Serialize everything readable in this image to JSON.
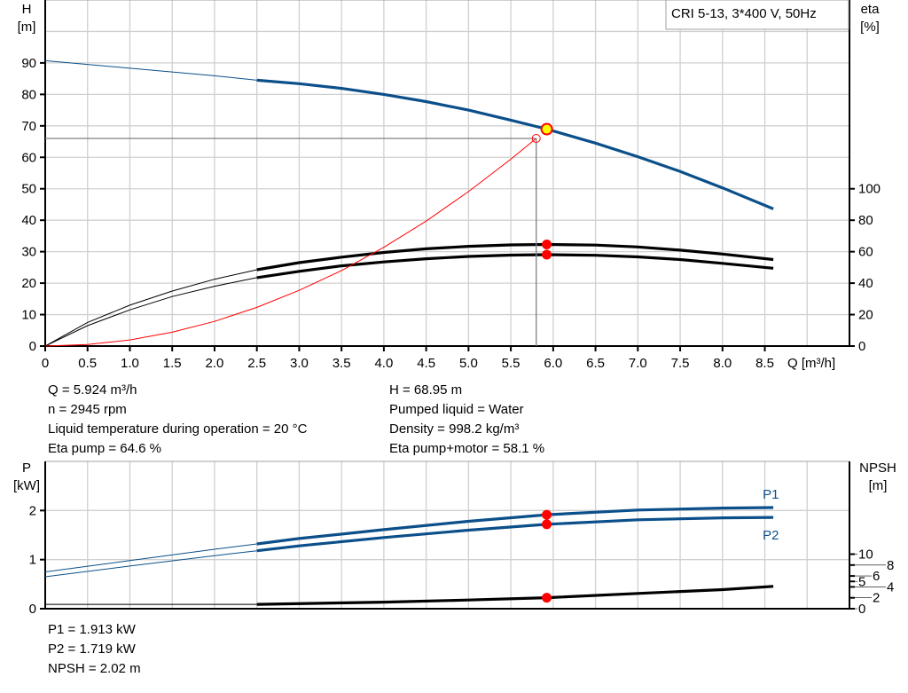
{
  "chart_data": [
    {
      "type": "line",
      "title": "CRI 5-13, 3*400 V, 50Hz",
      "xlabel": "Q [m³/h]",
      "ylabel": "H\n[m]",
      "ylabel_lines": [
        "H",
        "[m]"
      ],
      "y2label_lines": [
        "eta",
        "[%]"
      ],
      "xlim": [
        0,
        9.5
      ],
      "ylim": [
        0,
        110
      ],
      "y2lim": [
        0,
        220
      ],
      "x_ticks": [
        "0",
        "0.5",
        "1.0",
        "1.5",
        "2.0",
        "2.5",
        "3.0",
        "3.5",
        "4.0",
        "4.5",
        "5.0",
        "5.5",
        "6.0",
        "6.5",
        "7.0",
        "7.5",
        "8.0",
        "8.5"
      ],
      "y_ticks": [
        "0",
        "10",
        "20",
        "30",
        "40",
        "50",
        "60",
        "70",
        "80",
        "90"
      ],
      "y2_ticks": [
        "0",
        "20",
        "40",
        "60",
        "80",
        "100"
      ],
      "grid": true,
      "legend": "top-right",
      "operating_range_start": 2.5,
      "series": [
        {
          "key": "H",
          "axis": "left",
          "color": "#0b4f8a",
          "x": [
            0,
            1,
            2,
            2.5,
            3,
            3.5,
            4,
            4.5,
            5,
            5.5,
            5.924,
            6.5,
            7,
            7.5,
            8,
            8.6
          ],
          "y": [
            90.7,
            88.3,
            85.9,
            84.5,
            83.4,
            81.9,
            80.0,
            77.7,
            75.0,
            71.8,
            68.95,
            64.5,
            60.2,
            55.5,
            50.3,
            43.6
          ]
        },
        {
          "key": "eta_pump",
          "axis": "right",
          "color": "#000000",
          "x": [
            0,
            0.5,
            1,
            1.5,
            2,
            2.5,
            3,
            3.5,
            4,
            4.5,
            5,
            5.5,
            5.924,
            6.5,
            7,
            7.5,
            8,
            8.6
          ],
          "y": [
            0,
            15,
            26,
            35,
            42.5,
            48.5,
            53,
            56.5,
            59.5,
            61.8,
            63.4,
            64.3,
            64.6,
            64.2,
            63,
            61,
            58.5,
            55
          ]
        },
        {
          "key": "eta_pump_motor",
          "axis": "right",
          "color": "#000000",
          "x": [
            0,
            0.5,
            1,
            1.5,
            2,
            2.5,
            3,
            3.5,
            4,
            4.5,
            5,
            5.5,
            5.924,
            6.5,
            7,
            7.5,
            8,
            8.6
          ],
          "y": [
            0,
            13,
            23,
            31.5,
            38,
            43.5,
            47.5,
            51,
            53.5,
            55.5,
            57,
            57.8,
            58.1,
            57.7,
            56.7,
            55,
            52.6,
            49.5
          ]
        },
        {
          "key": "system",
          "axis": "left",
          "color": "#ff0000",
          "x": [
            0,
            0.5,
            1,
            1.5,
            2,
            2.5,
            3,
            3.5,
            4,
            4.5,
            5,
            5.5,
            5.8
          ],
          "y": [
            0,
            0.49,
            1.96,
            4.41,
            7.85,
            12.3,
            17.7,
            24.0,
            31.4,
            39.7,
            49.1,
            59.4,
            66.0
          ]
        }
      ],
      "operating_point": {
        "Q": 5.924,
        "H": 68.95,
        "eta_pump": 64.6,
        "eta_pump_motor": 58.1
      },
      "duty_point": {
        "Q": 5.8,
        "H": 66.0
      },
      "colors": {
        "operating_marker": "#ff0000",
        "operating_marker_fill": "#ffff00",
        "grid": "#d0d0d0",
        "duty_lines": "#808080"
      }
    },
    {
      "type": "line",
      "xlim": [
        0,
        9.5
      ],
      "ylim": [
        0,
        3
      ],
      "y2lim": [
        0,
        27
      ],
      "ylabel_lines": [
        "P",
        "[kW]"
      ],
      "y2label_lines": [
        "NPSH",
        "[m]"
      ],
      "y_ticks": [
        "0",
        "1",
        "2"
      ],
      "y2_ticks": [
        "0",
        "2",
        "4",
        "5",
        "6",
        "8",
        "10"
      ],
      "grid": true,
      "operating_range_start": 2.5,
      "series": [
        {
          "key": "P1",
          "name": "P1",
          "axis": "left",
          "color": "#0b4f8a",
          "x": [
            0,
            1,
            2,
            2.5,
            3,
            4,
            5,
            5.924,
            7,
            8,
            8.6
          ],
          "y": [
            0.75,
            0.98,
            1.21,
            1.32,
            1.43,
            1.61,
            1.78,
            1.913,
            2.01,
            2.05,
            2.06
          ]
        },
        {
          "key": "P2",
          "name": "P2",
          "axis": "left",
          "color": "#0b4f8a",
          "x": [
            0,
            1,
            2,
            2.5,
            3,
            4,
            5,
            5.924,
            7,
            8,
            8.6
          ],
          "y": [
            0.65,
            0.87,
            1.08,
            1.18,
            1.28,
            1.45,
            1.6,
            1.719,
            1.81,
            1.85,
            1.86
          ]
        },
        {
          "key": "NPSH",
          "axis": "right",
          "color": "#000000",
          "x": [
            0,
            2.5,
            4,
            5,
            5.924,
            7,
            8,
            8.6
          ],
          "y": [
            0.8,
            0.8,
            1.2,
            1.6,
            2.02,
            2.8,
            3.5,
            4.1
          ]
        }
      ],
      "operating_point": {
        "Q": 5.924,
        "P1": 1.913,
        "P2": 1.719,
        "NPSH": 2.02
      }
    }
  ],
  "info_top": {
    "left": [
      "Q = 5.924 m³/h",
      "n = 2945 rpm",
      "Liquid temperature during operation = 20 °C",
      "Eta pump = 64.6 %"
    ],
    "right": [
      "H = 68.95 m",
      "Pumped liquid = Water",
      "Density = 998.2 kg/m³",
      "Eta pump+motor = 58.1 %"
    ]
  },
  "info_bottom": [
    "P1 = 1.913 kW",
    "P2 = 1.719 kW",
    "NPSH = 2.02 m"
  ]
}
